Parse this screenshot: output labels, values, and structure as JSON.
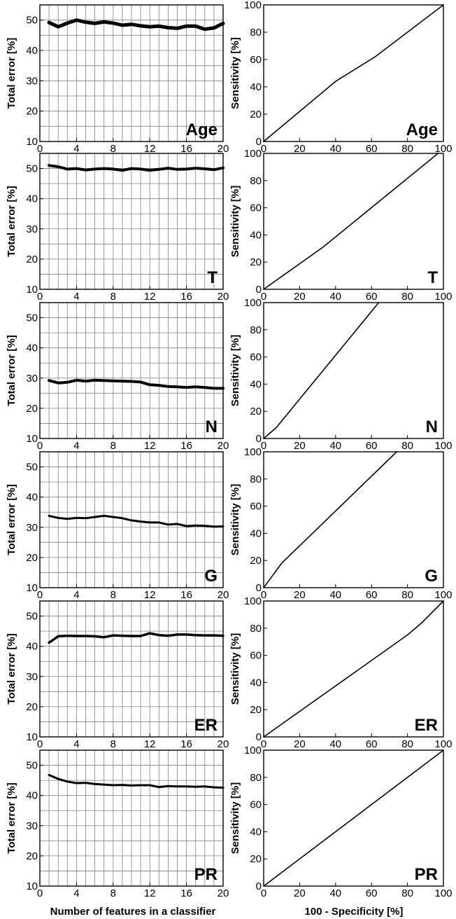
{
  "x_axis_labels": {
    "left": "Number of features in a classifier",
    "right": "100 - Specificity [%]"
  },
  "colors": {
    "line": "#000000",
    "grid": "#808080",
    "frame": "#000000"
  },
  "chart_data": [
    {
      "id": "err-age",
      "type": "line",
      "panel_label": "Age",
      "ylabel": "Total error [%]",
      "xlim": [
        0,
        20
      ],
      "ylim": [
        10,
        55
      ],
      "xticks": [
        0,
        4,
        8,
        12,
        16,
        20
      ],
      "yticks": [
        10,
        20,
        30,
        40,
        50
      ],
      "grid": true,
      "line_width": 5,
      "x": [
        1,
        2,
        3,
        4,
        5,
        6,
        7,
        8,
        9,
        10,
        11,
        12,
        13,
        14,
        15,
        16,
        17,
        18,
        19,
        20
      ],
      "y": [
        49.2,
        47.8,
        49.0,
        50.0,
        49.3,
        48.9,
        49.4,
        49.0,
        48.3,
        48.6,
        48.1,
        47.8,
        48.0,
        47.5,
        47.3,
        48.0,
        48.0,
        47.0,
        47.4,
        48.9
      ]
    },
    {
      "id": "roc-age",
      "type": "line",
      "panel_label": "Age",
      "ylabel": "Sensitivity [%]",
      "xlim": [
        0,
        100
      ],
      "ylim": [
        0,
        100
      ],
      "xticks": [
        0,
        20,
        40,
        60,
        80,
        100
      ],
      "yticks": [
        0,
        20,
        40,
        60,
        80,
        100
      ],
      "grid": false,
      "line_width": 1.6,
      "x": [
        0,
        40,
        62,
        100
      ],
      "y": [
        0,
        44,
        62,
        100
      ]
    },
    {
      "id": "err-t",
      "type": "line",
      "panel_label": "T",
      "ylabel": "Total error [%]",
      "xlim": [
        0,
        20
      ],
      "ylim": [
        10,
        55
      ],
      "xticks": [
        0,
        4,
        8,
        12,
        16,
        20
      ],
      "yticks": [
        10,
        20,
        30,
        40,
        50
      ],
      "grid": true,
      "line_width": 4,
      "x": [
        1,
        2,
        3,
        4,
        5,
        6,
        7,
        8,
        9,
        10,
        11,
        12,
        13,
        14,
        15,
        16,
        17,
        18,
        19,
        20
      ],
      "y": [
        51.0,
        50.6,
        49.8,
        50.0,
        49.5,
        49.8,
        50.0,
        49.8,
        49.4,
        50.0,
        49.8,
        49.4,
        49.7,
        50.1,
        49.7,
        49.8,
        50.1,
        49.9,
        49.6,
        50.2
      ]
    },
    {
      "id": "roc-t",
      "type": "line",
      "panel_label": "T",
      "ylabel": "Sensitivity [%]",
      "xlim": [
        0,
        100
      ],
      "ylim": [
        0,
        100
      ],
      "xticks": [
        0,
        20,
        40,
        60,
        80,
        100
      ],
      "yticks": [
        0,
        20,
        40,
        60,
        80,
        100
      ],
      "grid": false,
      "line_width": 1.6,
      "x": [
        0,
        33,
        97
      ],
      "y": [
        0,
        31,
        100
      ]
    },
    {
      "id": "err-n",
      "type": "line",
      "panel_label": "N",
      "ylabel": "Total error [%]",
      "xlim": [
        0,
        20
      ],
      "ylim": [
        10,
        55
      ],
      "xticks": [
        0,
        4,
        8,
        12,
        16,
        20
      ],
      "yticks": [
        10,
        20,
        30,
        40,
        50
      ],
      "grid": true,
      "line_width": 4,
      "x": [
        1,
        2,
        3,
        4,
        5,
        6,
        7,
        8,
        9,
        10,
        11,
        12,
        13,
        14,
        15,
        16,
        17,
        18,
        19,
        20
      ],
      "y": [
        29.2,
        28.4,
        28.6,
        29.3,
        29.0,
        29.3,
        29.2,
        29.1,
        29.0,
        28.9,
        28.7,
        27.8,
        27.6,
        27.2,
        27.1,
        26.9,
        27.1,
        26.9,
        26.6,
        26.6
      ]
    },
    {
      "id": "roc-n",
      "type": "line",
      "panel_label": "N",
      "ylabel": "Sensitivity [%]",
      "xlim": [
        0,
        100
      ],
      "ylim": [
        0,
        100
      ],
      "xticks": [
        0,
        20,
        40,
        60,
        80,
        100
      ],
      "yticks": [
        0,
        20,
        40,
        60,
        80,
        100
      ],
      "grid": false,
      "line_width": 1.6,
      "x": [
        0,
        7,
        64
      ],
      "y": [
        0,
        8,
        100
      ]
    },
    {
      "id": "err-g",
      "type": "line",
      "panel_label": "G",
      "ylabel": "Total error [%]",
      "xlim": [
        0,
        20
      ],
      "ylim": [
        10,
        55
      ],
      "xticks": [
        0,
        4,
        8,
        12,
        16,
        20
      ],
      "yticks": [
        10,
        20,
        30,
        40,
        50
      ],
      "grid": true,
      "line_width": 3,
      "x": [
        1,
        2,
        3,
        4,
        5,
        6,
        7,
        8,
        9,
        10,
        11,
        12,
        13,
        14,
        15,
        16,
        17,
        18,
        19,
        20
      ],
      "y": [
        33.8,
        33.1,
        32.8,
        33.1,
        33.0,
        33.4,
        33.8,
        33.4,
        33.0,
        32.3,
        31.9,
        31.6,
        31.6,
        30.9,
        31.1,
        30.4,
        30.6,
        30.5,
        30.2,
        30.3
      ]
    },
    {
      "id": "roc-g",
      "type": "line",
      "panel_label": "G",
      "ylabel": "Sensitivity [%]",
      "xlim": [
        0,
        100
      ],
      "ylim": [
        0,
        100
      ],
      "xticks": [
        0,
        20,
        40,
        60,
        80,
        100
      ],
      "yticks": [
        0,
        20,
        40,
        60,
        80,
        100
      ],
      "grid": false,
      "line_width": 1.6,
      "x": [
        0,
        10,
        74
      ],
      "y": [
        0,
        18,
        100
      ]
    },
    {
      "id": "err-er",
      "type": "line",
      "panel_label": "ER",
      "ylabel": "Total error [%]",
      "xlim": [
        0,
        20
      ],
      "ylim": [
        10,
        55
      ],
      "xticks": [
        0,
        4,
        8,
        12,
        16,
        20
      ],
      "yticks": [
        10,
        20,
        30,
        40,
        50
      ],
      "grid": true,
      "line_width": 3.5,
      "x": [
        1,
        2,
        3,
        4,
        5,
        6,
        7,
        8,
        9,
        10,
        11,
        12,
        13,
        14,
        15,
        16,
        17,
        18,
        19,
        20
      ],
      "y": [
        41.2,
        43.3,
        43.5,
        43.4,
        43.4,
        43.3,
        43.0,
        43.6,
        43.5,
        43.4,
        43.4,
        44.3,
        43.7,
        43.5,
        43.9,
        43.9,
        43.7,
        43.6,
        43.6,
        43.5
      ]
    },
    {
      "id": "roc-er",
      "type": "line",
      "panel_label": "ER",
      "ylabel": "Sensitivity [%]",
      "xlim": [
        0,
        100
      ],
      "ylim": [
        0,
        100
      ],
      "xticks": [
        0,
        20,
        40,
        60,
        80,
        100
      ],
      "yticks": [
        0,
        20,
        40,
        60,
        80,
        100
      ],
      "grid": false,
      "line_width": 1.6,
      "x": [
        0,
        80,
        88,
        100
      ],
      "y": [
        0,
        75,
        84,
        100
      ]
    },
    {
      "id": "err-pr",
      "type": "line",
      "panel_label": "PR",
      "ylabel": "Total error [%]",
      "xlim": [
        0,
        20
      ],
      "ylim": [
        10,
        55
      ],
      "xticks": [
        0,
        4,
        8,
        12,
        16,
        20
      ],
      "yticks": [
        10,
        20,
        30,
        40,
        50
      ],
      "grid": true,
      "line_width": 3,
      "x": [
        1,
        2,
        3,
        4,
        5,
        6,
        7,
        8,
        9,
        10,
        11,
        12,
        13,
        14,
        15,
        16,
        17,
        18,
        19,
        20
      ],
      "y": [
        46.8,
        45.5,
        44.6,
        44.1,
        44.2,
        43.8,
        43.6,
        43.4,
        43.5,
        43.3,
        43.4,
        43.4,
        42.8,
        43.1,
        43.0,
        43.0,
        42.9,
        43.0,
        42.7,
        42.6
      ]
    },
    {
      "id": "roc-pr",
      "type": "line",
      "panel_label": "PR",
      "ylabel": "Sensitivity [%]",
      "xlim": [
        0,
        100
      ],
      "ylim": [
        0,
        100
      ],
      "xticks": [
        0,
        20,
        40,
        60,
        80,
        100
      ],
      "yticks": [
        0,
        20,
        40,
        60,
        80,
        100
      ],
      "grid": false,
      "line_width": 1.6,
      "x": [
        0,
        100
      ],
      "y": [
        0,
        100
      ]
    }
  ]
}
